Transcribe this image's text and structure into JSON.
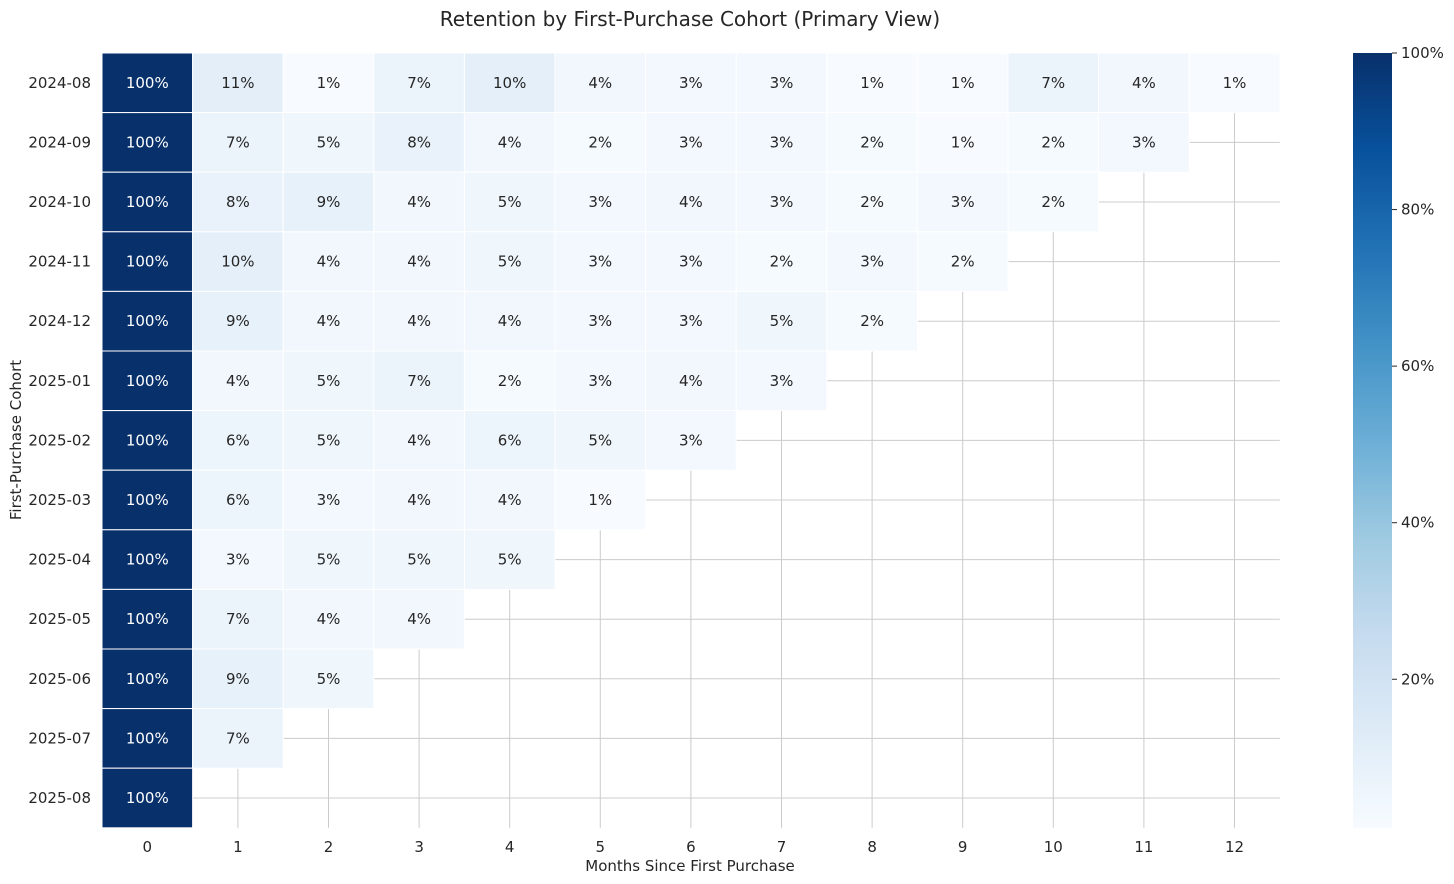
{
  "chart_data": {
    "type": "heatmap",
    "title": "Retention by First-Purchase Cohort (Primary View)",
    "xlabel": "Months Since First Purchase",
    "ylabel": "First-Purchase Cohort",
    "x": [
      "0",
      "1",
      "2",
      "3",
      "4",
      "5",
      "6",
      "7",
      "8",
      "9",
      "10",
      "11",
      "12"
    ],
    "y": [
      "2024-08",
      "2024-09",
      "2024-10",
      "2024-11",
      "2024-12",
      "2025-01",
      "2025-02",
      "2025-03",
      "2025-04",
      "2025-05",
      "2025-06",
      "2025-07",
      "2025-08"
    ],
    "values": [
      [
        100,
        11,
        1,
        7,
        10,
        4,
        3,
        3,
        1,
        1,
        7,
        4,
        1
      ],
      [
        100,
        7,
        5,
        8,
        4,
        2,
        3,
        3,
        2,
        1,
        2,
        3,
        null
      ],
      [
        100,
        8,
        9,
        4,
        5,
        3,
        4,
        3,
        2,
        3,
        2,
        null,
        null
      ],
      [
        100,
        10,
        4,
        4,
        5,
        3,
        3,
        2,
        3,
        2,
        null,
        null,
        null
      ],
      [
        100,
        9,
        4,
        4,
        4,
        3,
        3,
        5,
        2,
        null,
        null,
        null,
        null
      ],
      [
        100,
        4,
        5,
        7,
        2,
        3,
        4,
        3,
        null,
        null,
        null,
        null,
        null
      ],
      [
        100,
        6,
        5,
        4,
        6,
        5,
        3,
        null,
        null,
        null,
        null,
        null,
        null
      ],
      [
        100,
        6,
        3,
        4,
        4,
        1,
        null,
        null,
        null,
        null,
        null,
        null,
        null
      ],
      [
        100,
        3,
        5,
        5,
        5,
        null,
        null,
        null,
        null,
        null,
        null,
        null,
        null
      ],
      [
        100,
        7,
        4,
        4,
        null,
        null,
        null,
        null,
        null,
        null,
        null,
        null,
        null
      ],
      [
        100,
        9,
        5,
        null,
        null,
        null,
        null,
        null,
        null,
        null,
        null,
        null,
        null
      ],
      [
        100,
        7,
        null,
        null,
        null,
        null,
        null,
        null,
        null,
        null,
        null,
        null,
        null
      ],
      [
        100,
        null,
        null,
        null,
        null,
        null,
        null,
        null,
        null,
        null,
        null,
        null,
        null
      ]
    ],
    "value_format": "percent",
    "colorbar": {
      "range": [
        1,
        100
      ],
      "ticks": [
        "20%",
        "40%",
        "60%",
        "80%",
        "100%"
      ],
      "tick_values": [
        20,
        40,
        60,
        80,
        100
      ],
      "colormap": "Blues",
      "colors": [
        "#f7fbff",
        "#deebf7",
        "#c6dbef",
        "#9ecae1",
        "#6baed6",
        "#4292c6",
        "#2171b5",
        "#08519c",
        "#08306b"
      ]
    },
    "grid": true
  }
}
